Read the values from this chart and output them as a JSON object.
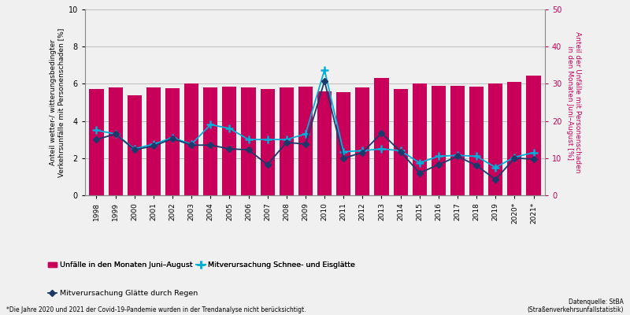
{
  "years": [
    "1998",
    "1999",
    "2000",
    "2001",
    "2002",
    "2003",
    "2004",
    "2005",
    "2006",
    "2007",
    "2008",
    "2009",
    "2010",
    "2011",
    "2012",
    "2013",
    "2014",
    "2015",
    "2016",
    "2017",
    "2018",
    "2019",
    "2020*",
    "2021*"
  ],
  "bar_values": [
    5.7,
    5.8,
    5.4,
    5.8,
    5.75,
    6.0,
    5.8,
    5.85,
    5.8,
    5.7,
    5.8,
    5.85,
    5.6,
    5.55,
    5.8,
    6.3,
    5.7,
    6.0,
    5.9,
    5.9,
    5.85,
    6.0,
    6.1,
    6.45
  ],
  "line_schnee": [
    3.5,
    3.3,
    2.5,
    2.75,
    3.1,
    2.75,
    3.8,
    3.6,
    3.0,
    3.0,
    3.0,
    3.3,
    6.75,
    2.35,
    2.4,
    2.5,
    2.4,
    1.75,
    2.1,
    2.15,
    2.1,
    1.5,
    2.05,
    2.3
  ],
  "line_regen": [
    3.0,
    3.3,
    2.45,
    2.65,
    3.05,
    2.7,
    2.7,
    2.5,
    2.45,
    1.65,
    2.85,
    2.75,
    6.15,
    2.0,
    2.3,
    3.35,
    2.35,
    1.2,
    1.65,
    2.1,
    1.6,
    0.85,
    2.0,
    1.95
  ],
  "bar_color": "#c8005a",
  "line_schnee_color": "#00b0d8",
  "line_regen_color": "#1a3a6b",
  "left_ylim": [
    0,
    10
  ],
  "right_ylim": [
    0,
    50
  ],
  "left_yticks": [
    0,
    2,
    4,
    6,
    8,
    10
  ],
  "right_yticks": [
    0,
    10,
    20,
    30,
    40,
    50
  ],
  "left_ylabel": "Anteil wetter-/ witterungsbedingter\nVerkehrsunfälle mit Personenschaden [%]",
  "right_ylabel": "Anteil der Unfälle mit Personenschaden\nin den Monaten Juni–August [%]",
  "legend_bar": "Unfälle in den Monaten Juni–August",
  "legend_schnee": "Mitverursachung Schnee- und Eisglätte",
  "legend_regen": "Mitverursachung Glätte durch Regen",
  "footnote": "*Die Jahre 2020 und 2021 der Covid-19-Pandemie wurden in der Trendanalyse nicht berücksichtigt.",
  "source": "Datenquelle: StBA\n(Straßenverkehrsunfallstatistik)",
  "background_color": "#f0f0f0"
}
